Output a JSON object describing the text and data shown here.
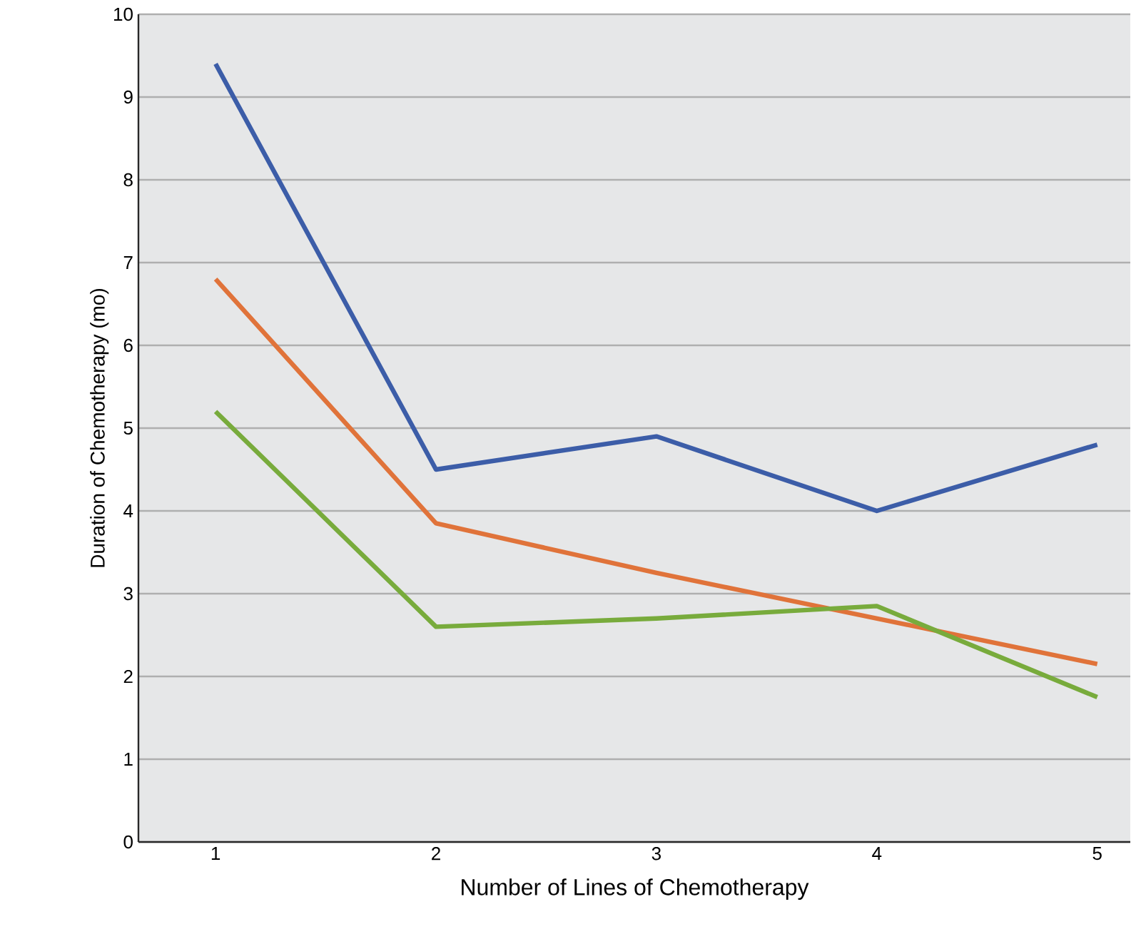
{
  "chart_data": {
    "type": "line",
    "xlabel": "Number of Lines of Chemotherapy",
    "ylabel": "Duration of Chemotherapy (mo)",
    "x": [
      1,
      2,
      3,
      4,
      5
    ],
    "series": [
      {
        "color": "#3c5da8",
        "values": [
          9.4,
          4.5,
          4.9,
          4.0,
          4.8
        ]
      },
      {
        "color": "#e0733a",
        "values": [
          6.8,
          3.85,
          3.25,
          2.7,
          2.15
        ]
      },
      {
        "color": "#78ab3c",
        "values": [
          5.2,
          2.6,
          2.7,
          2.85,
          1.75
        ]
      }
    ],
    "xlim": [
      0.65,
      5.15
    ],
    "xticks": [
      1,
      2,
      3,
      4,
      5
    ],
    "ylim": [
      0,
      10
    ],
    "yticks": [
      0,
      1,
      2,
      3,
      4,
      5,
      6,
      7,
      8,
      9,
      10
    ],
    "grid": "y",
    "marker": "none",
    "line_style": "solid"
  }
}
